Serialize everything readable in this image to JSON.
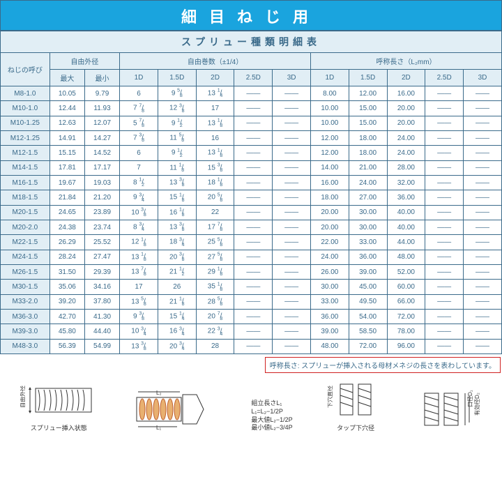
{
  "banner": "細目ねじ用",
  "subtitle": "スプリュー種類明細表",
  "groups": {
    "name": "ねじの呼び",
    "od": "自由外径",
    "turns": "自由巻数（±1/4）",
    "len": "呼称長さ（L₂mm）"
  },
  "cols": {
    "od_max": "最大",
    "od_min": "最小",
    "t1d": "1D",
    "t15d": "1.5D",
    "t2d": "2D",
    "t25d": "2.5D",
    "t3d": "3D",
    "l1d": "1D",
    "l15d": "1.5D",
    "l2d": "2D",
    "l25d": "2.5D",
    "l3d": "3D"
  },
  "rows": [
    {
      "name": "M8-1.0",
      "od_max": "10.05",
      "od_min": "9.79",
      "t1d": "6",
      "t15d": "9 5/8",
      "t2d": "13 1/4",
      "t25d": "—",
      "t3d": "—",
      "l1d": "8.00",
      "l15d": "12.00",
      "l2d": "16.00",
      "l25d": "—",
      "l3d": "—"
    },
    {
      "name": "M10-1.0",
      "od_max": "12.44",
      "od_min": "11.93",
      "t1d": "7 7/8",
      "t15d": "12 3/8",
      "t2d": "17",
      "t25d": "—",
      "t3d": "—",
      "l1d": "10.00",
      "l15d": "15.00",
      "l2d": "20.00",
      "l25d": "—",
      "l3d": "—"
    },
    {
      "name": "M10-1.25",
      "od_max": "12.63",
      "od_min": "12.07",
      "t1d": "5 7/8",
      "t15d": "9 1/2",
      "t2d": "13 1/8",
      "t25d": "—",
      "t3d": "—",
      "l1d": "10.00",
      "l15d": "15.00",
      "l2d": "20.00",
      "l25d": "—",
      "l3d": "—"
    },
    {
      "name": "M12-1.25",
      "od_max": "14.91",
      "od_min": "14.27",
      "t1d": "7 3/8",
      "t15d": "11 5/8",
      "t2d": "16",
      "t25d": "—",
      "t3d": "—",
      "l1d": "12.00",
      "l15d": "18.00",
      "l2d": "24.00",
      "l25d": "—",
      "l3d": "—"
    },
    {
      "name": "M12-1.5",
      "od_max": "15.15",
      "od_min": "14.52",
      "t1d": "6",
      "t15d": "9 1/2",
      "t2d": "13 1/8",
      "t25d": "—",
      "t3d": "—",
      "l1d": "12.00",
      "l15d": "18.00",
      "l2d": "24.00",
      "l25d": "—",
      "l3d": "—"
    },
    {
      "name": "M14-1.5",
      "od_max": "17.81",
      "od_min": "17.17",
      "t1d": "7",
      "t15d": "11 1/8",
      "t2d": "15 3/8",
      "t25d": "—",
      "t3d": "—",
      "l1d": "14.00",
      "l15d": "21.00",
      "l2d": "28.00",
      "l25d": "—",
      "l3d": "—"
    },
    {
      "name": "M16-1.5",
      "od_max": "19.67",
      "od_min": "19.03",
      "t1d": "8 1/2",
      "t15d": "13 3/8",
      "t2d": "18 1/8",
      "t25d": "—",
      "t3d": "—",
      "l1d": "16.00",
      "l15d": "24.00",
      "l2d": "32.00",
      "l25d": "—",
      "l3d": "—"
    },
    {
      "name": "M18-1.5",
      "od_max": "21.84",
      "od_min": "21.20",
      "t1d": "9 3/4",
      "t15d": "15 1/8",
      "t2d": "20 5/8",
      "t25d": "—",
      "t3d": "—",
      "l1d": "18.00",
      "l15d": "27.00",
      "l2d": "36.00",
      "l25d": "—",
      "l3d": "—"
    },
    {
      "name": "M20-1.5",
      "od_max": "24.65",
      "od_min": "23.89",
      "t1d": "10 3/8",
      "t15d": "16 1/8",
      "t2d": "22",
      "t25d": "—",
      "t3d": "—",
      "l1d": "20.00",
      "l15d": "30.00",
      "l2d": "40.00",
      "l25d": "—",
      "l3d": "—"
    },
    {
      "name": "M20-2.0",
      "od_max": "24.38",
      "od_min": "23.74",
      "t1d": "8 3/4",
      "t15d": "13 3/8",
      "t2d": "17 7/8",
      "t25d": "—",
      "t3d": "—",
      "l1d": "20.00",
      "l15d": "30.00",
      "l2d": "40.00",
      "l25d": "—",
      "l3d": "—"
    },
    {
      "name": "M22-1.5",
      "od_max": "26.29",
      "od_min": "25.52",
      "t1d": "12 1/8",
      "t15d": "18 3/4",
      "t2d": "25 5/8",
      "t25d": "—",
      "t3d": "—",
      "l1d": "22.00",
      "l15d": "33.00",
      "l2d": "44.00",
      "l25d": "—",
      "l3d": "—"
    },
    {
      "name": "M24-1.5",
      "od_max": "28.24",
      "od_min": "27.47",
      "t1d": "13 1/8",
      "t15d": "20 3/8",
      "t2d": "27 5/8",
      "t25d": "—",
      "t3d": "—",
      "l1d": "24.00",
      "l15d": "36.00",
      "l2d": "48.00",
      "l25d": "—",
      "l3d": "—"
    },
    {
      "name": "M26-1.5",
      "od_max": "31.50",
      "od_min": "29.39",
      "t1d": "13 7/8",
      "t15d": "21 1/2",
      "t2d": "29 1/8",
      "t25d": "—",
      "t3d": "—",
      "l1d": "26.00",
      "l15d": "39.00",
      "l2d": "52.00",
      "l25d": "—",
      "l3d": "—"
    },
    {
      "name": "M30-1.5",
      "od_max": "35.06",
      "od_min": "34.16",
      "t1d": "17",
      "t15d": "26",
      "t2d": "35 1/8",
      "t25d": "—",
      "t3d": "—",
      "l1d": "30.00",
      "l15d": "45.00",
      "l2d": "60.00",
      "l25d": "—",
      "l3d": "—"
    },
    {
      "name": "M33-2.0",
      "od_max": "39.20",
      "od_min": "37.80",
      "t1d": "13 5/8",
      "t15d": "21 1/8",
      "t2d": "28 5/8",
      "t25d": "—",
      "t3d": "—",
      "l1d": "33.00",
      "l15d": "49.50",
      "l2d": "66.00",
      "l25d": "—",
      "l3d": "—"
    },
    {
      "name": "M36-3.0",
      "od_max": "42.70",
      "od_min": "41.30",
      "t1d": "9 3/8",
      "t15d": "15 1/4",
      "t2d": "20 7/8",
      "t25d": "—",
      "t3d": "—",
      "l1d": "36.00",
      "l15d": "54.00",
      "l2d": "72.00",
      "l25d": "—",
      "l3d": "—"
    },
    {
      "name": "M39-3.0",
      "od_max": "45.80",
      "od_min": "44.40",
      "t1d": "10 3/4",
      "t15d": "16 3/4",
      "t2d": "22 3/4",
      "t25d": "—",
      "t3d": "—",
      "l1d": "39.00",
      "l15d": "58.50",
      "l2d": "78.00",
      "l25d": "—",
      "l3d": "—"
    },
    {
      "name": "M48-3.0",
      "od_max": "56.39",
      "od_min": "54.99",
      "t1d": "13 3/8",
      "t15d": "20 3/4",
      "t2d": "28",
      "t25d": "—",
      "t3d": "—",
      "l1d": "48.00",
      "l15d": "72.00",
      "l2d": "96.00",
      "l25d": "—",
      "l3d": "—"
    }
  ],
  "note": "呼称長さ: スプリューが挿入される母材メネジの長さを表わしています。",
  "diag": {
    "d1_side": "自由外径",
    "d1_cap": "スプリュー挿入状態",
    "d2_l1": "L₁",
    "d2_l2": "L₂",
    "form_t": "組立長さL₁",
    "form_1": "L₁=L₂−1/2P",
    "form_2": "最大値L₂−1/2P",
    "form_3": "最小値L₂−3/4P",
    "d3_side": "下穴直径",
    "d3_cap": "タップ下穴径",
    "d4_a": "口径D₁",
    "d4_b": "有効径D₂"
  },
  "colors": {
    "band": "#1aa4de",
    "ink": "#3a6a8a",
    "head": "#e1eef5",
    "note": "#d02020"
  }
}
